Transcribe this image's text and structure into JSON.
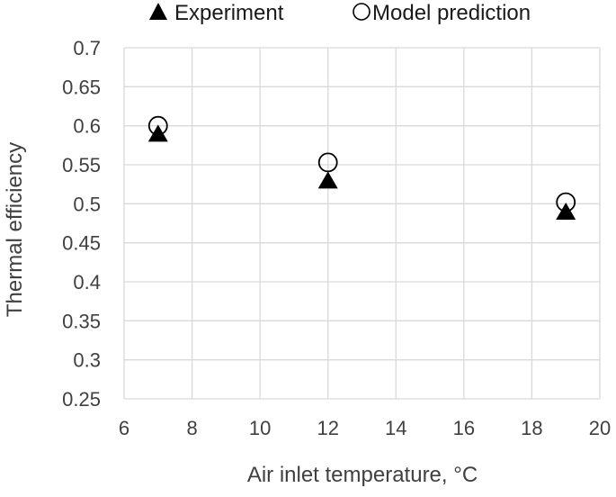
{
  "chart_data": {
    "type": "scatter",
    "title": "",
    "xlabel": "Air inlet temperature, °C",
    "ylabel": "Thermal efficiency",
    "xlim": [
      6,
      20
    ],
    "ylim": [
      0.25,
      0.7
    ],
    "x_ticks": [
      6,
      8,
      10,
      12,
      14,
      16,
      18,
      20
    ],
    "y_ticks": [
      0.25,
      0.3,
      0.35,
      0.4,
      0.45,
      0.5,
      0.55,
      0.6,
      0.65,
      0.7
    ],
    "x_tick_labels": [
      "6",
      "8",
      "10",
      "12",
      "14",
      "16",
      "18",
      "20"
    ],
    "y_tick_labels": [
      "0.25",
      "0.3",
      "0.35",
      "0.4",
      "0.45",
      "0.5",
      "0.55",
      "0.6",
      "0.65",
      "0.7"
    ],
    "grid": true,
    "legend_position": "top",
    "series": [
      {
        "name": "Experiment",
        "marker": "filled-triangle",
        "color": "#000000",
        "points": [
          {
            "x": 7,
            "y": 0.59
          },
          {
            "x": 12,
            "y": 0.53
          },
          {
            "x": 19,
            "y": 0.49
          }
        ]
      },
      {
        "name": "Model prediction",
        "marker": "open-circle",
        "color": "#000000",
        "points": [
          {
            "x": 7,
            "y": 0.6
          },
          {
            "x": 12,
            "y": 0.553
          },
          {
            "x": 19,
            "y": 0.502
          }
        ]
      }
    ]
  },
  "colors": {
    "gridline": "#d9d9d9",
    "text": "#404040",
    "marker": "#000000"
  }
}
